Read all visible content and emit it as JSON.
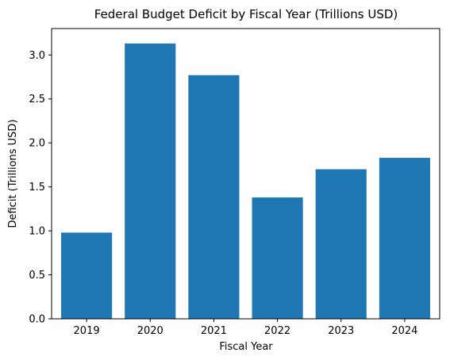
{
  "chart_data": {
    "type": "bar",
    "title": "Federal Budget Deficit by Fiscal Year (Trillions USD)",
    "xlabel": "Fiscal Year",
    "ylabel": "Deficit (Trillions USD)",
    "categories": [
      "2019",
      "2020",
      "2021",
      "2022",
      "2023",
      "2024"
    ],
    "values": [
      0.98,
      3.13,
      2.77,
      1.38,
      1.7,
      1.83
    ],
    "ylim": [
      0,
      3.3
    ],
    "yticks": [
      0.0,
      0.5,
      1.0,
      1.5,
      2.0,
      2.5,
      3.0
    ],
    "ytick_labels": [
      "0.0",
      "0.5",
      "1.0",
      "1.5",
      "2.0",
      "2.5",
      "3.0"
    ],
    "grid": false,
    "bar_color": "#1f77b4"
  }
}
